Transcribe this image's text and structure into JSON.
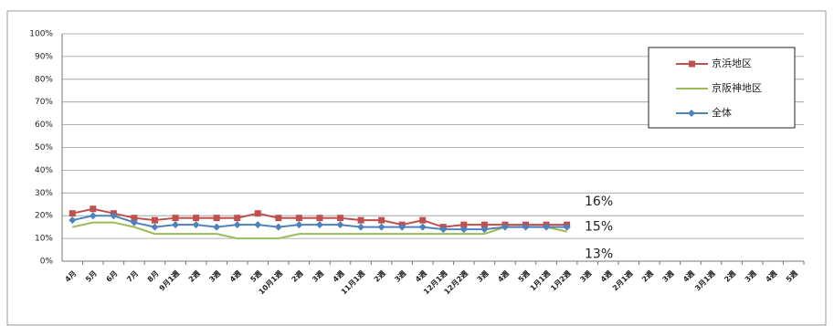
{
  "chart_data": {
    "type": "line",
    "categories": [
      "4月",
      "5月",
      "6月",
      "7月",
      "8月",
      "9月1週",
      "2週",
      "3週",
      "4週",
      "5週",
      "10月1週",
      "2週",
      "3週",
      "4週",
      "11月1週",
      "2週",
      "3週",
      "4週",
      "12月1週",
      "12月2週",
      "3週",
      "4週",
      "5週",
      "1月1週",
      "1月2週",
      "3週",
      "4週",
      "2月1週",
      "2週",
      "3週",
      "4週",
      "3月1週",
      "2週",
      "3週",
      "4週",
      "5週"
    ],
    "series": [
      {
        "name": "京浜地区",
        "color": "#c0504d",
        "marker": "square",
        "end_label": "16%",
        "values": [
          21,
          23,
          21,
          19,
          18,
          19,
          19,
          19,
          19,
          21,
          19,
          19,
          19,
          19,
          18,
          18,
          16,
          18,
          15,
          16,
          16,
          16,
          16,
          16,
          16,
          null,
          null,
          null,
          null,
          null,
          null,
          null,
          null,
          null,
          null,
          null
        ]
      },
      {
        "name": "京阪神地区",
        "color": "#9bbb59",
        "marker": "none",
        "end_label": "13%",
        "values": [
          15,
          17,
          17,
          15,
          12,
          12,
          12,
          12,
          10,
          10,
          10,
          12,
          12,
          12,
          12,
          12,
          12,
          12,
          12,
          12,
          12,
          15,
          15,
          15,
          13,
          null,
          null,
          null,
          null,
          null,
          null,
          null,
          null,
          null,
          null,
          null
        ]
      },
      {
        "name": "全体",
        "color": "#4f81bd",
        "marker": "diamond",
        "end_label": "15%",
        "values": [
          18,
          20,
          20,
          17,
          15,
          16,
          16,
          15,
          16,
          16,
          15,
          16,
          16,
          16,
          15,
          15,
          15,
          15,
          14,
          14,
          14,
          15,
          15,
          15,
          15,
          null,
          null,
          null,
          null,
          null,
          null,
          null,
          null,
          null,
          null,
          null
        ]
      }
    ],
    "ylim": [
      0,
      100
    ],
    "yticks": [
      {
        "value": 0,
        "label": "0%"
      },
      {
        "value": 10,
        "label": "10%"
      },
      {
        "value": 20,
        "label": "20%"
      },
      {
        "value": 30,
        "label": "30%"
      },
      {
        "value": 40,
        "label": "40%"
      },
      {
        "value": 50,
        "label": "50%"
      },
      {
        "value": 60,
        "label": "60%"
      },
      {
        "value": 70,
        "label": "70%"
      },
      {
        "value": 80,
        "label": "80%"
      },
      {
        "value": 90,
        "label": "90%"
      },
      {
        "value": 100,
        "label": "100%"
      }
    ],
    "grid": true,
    "legend": "upper right"
  }
}
